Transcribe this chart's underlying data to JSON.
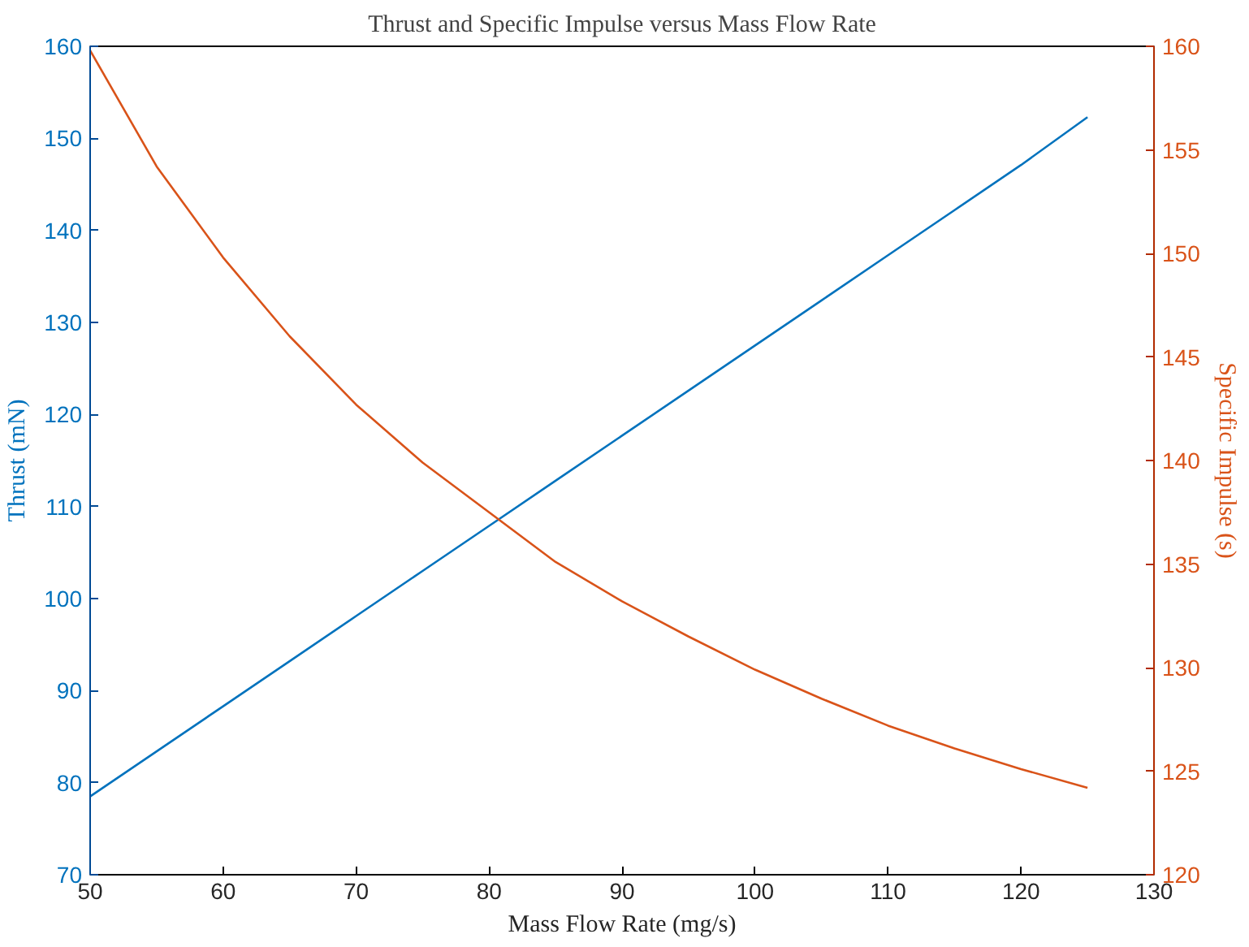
{
  "chart_data": {
    "type": "line",
    "title": "Thrust and Specific Impulse versus Mass Flow Rate",
    "xlabel": "Mass Flow Rate (mg/s)",
    "ylabel": "Thrust (mN)",
    "y2label": "Specific Impulse (s)",
    "x": [
      50,
      55,
      60,
      65,
      70,
      75,
      80,
      85,
      90,
      95,
      100,
      105,
      110,
      115,
      120,
      125
    ],
    "series": [
      {
        "color": "#0072bd",
        "values": [
          78.5,
          83.4,
          88.3,
          93.2,
          98.1,
          103.0,
          107.9,
          112.8,
          117.7,
          122.6,
          127.5,
          132.4,
          137.3,
          142.2,
          147.1,
          152.3
        ]
      },
      {
        "color": "#d95319",
        "axis": "y2",
        "values": [
          159.8,
          154.2,
          149.8,
          146.0,
          142.7,
          139.9,
          137.5,
          135.1,
          133.2,
          131.5,
          129.9,
          128.5,
          127.2,
          126.1,
          125.1,
          124.2
        ]
      }
    ],
    "xlim": [
      50,
      130
    ],
    "xticks": [
      50,
      60,
      70,
      80,
      90,
      100,
      110,
      120,
      130
    ],
    "ylim": [
      70,
      160
    ],
    "yticks": [
      70,
      80,
      90,
      100,
      110,
      120,
      130,
      140,
      150,
      160
    ],
    "y2lim": [
      120,
      160
    ],
    "y2ticks": [
      120,
      125,
      130,
      135,
      140,
      145,
      150,
      155,
      160
    ],
    "grid": false,
    "marker": "none",
    "line_style": "solid"
  }
}
